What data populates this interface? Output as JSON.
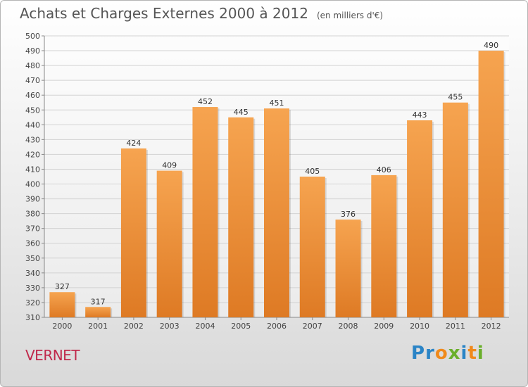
{
  "title": "Achats et Charges Externes 2000 à 2012",
  "subtitle": "(en milliers d'€)",
  "place_name": "VERNET",
  "logo": {
    "text": "Proxiti",
    "letters": [
      {
        "ch": "P",
        "color": "#2a84c6"
      },
      {
        "ch": "r",
        "color": "#2a84c6"
      },
      {
        "ch": "o",
        "color": "#f08a1c"
      },
      {
        "ch": "x",
        "color": "#6aaf2b"
      },
      {
        "ch": "i",
        "color": "#2a84c6"
      },
      {
        "ch": "t",
        "color": "#f08a1c"
      },
      {
        "ch": "i",
        "color": "#6aaf2b"
      }
    ]
  },
  "colors": {
    "bar_light": "#f6a450",
    "bar_dark": "#de7a24",
    "place": "#c0284a"
  },
  "chart_data": {
    "type": "bar",
    "title": "Achats et Charges Externes 2000 à 2012",
    "subtitle": "(en milliers d'€)",
    "categories": [
      "2000",
      "2001",
      "2002",
      "2003",
      "2004",
      "2005",
      "2006",
      "2007",
      "2008",
      "2009",
      "2010",
      "2011",
      "2012"
    ],
    "values": [
      327,
      317,
      424,
      409,
      452,
      445,
      451,
      405,
      376,
      406,
      443,
      455,
      490
    ],
    "ylim": [
      310,
      500
    ],
    "ytick_step": 10,
    "grid": true,
    "data_labels": true
  }
}
